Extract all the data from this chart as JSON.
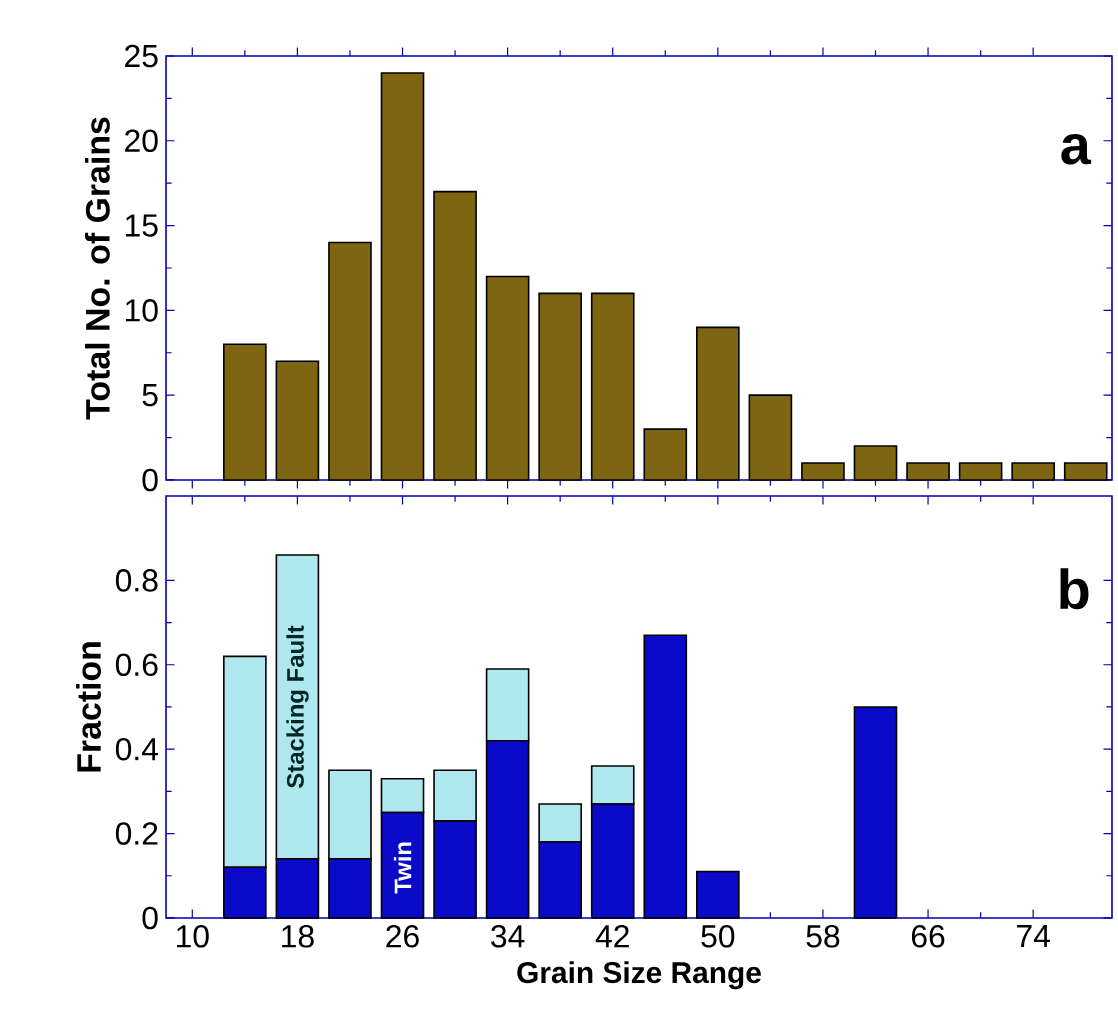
{
  "chart_data": [
    {
      "type": "bar",
      "title": "a",
      "ylabel": "Total No. of Grains",
      "x": [
        14,
        18,
        22,
        26,
        30,
        34,
        38,
        42,
        46,
        50,
        54,
        58,
        62,
        66,
        70,
        74,
        78
      ],
      "series": [
        {
          "color": "#7d6512",
          "values": [
            8,
            7,
            14,
            24,
            17,
            12,
            11,
            11,
            3,
            9,
            5,
            1,
            2,
            1,
            1,
            1,
            1
          ]
        }
      ],
      "xlim": [
        8,
        80
      ],
      "xticks": [
        {
          "value": 10,
          "label": null
        },
        {
          "value": 18,
          "label": null
        },
        {
          "value": 26,
          "label": null
        },
        {
          "value": 34,
          "label": null
        },
        {
          "value": 42,
          "label": null
        },
        {
          "value": 50,
          "label": null
        },
        {
          "value": 58,
          "label": null
        },
        {
          "value": 66,
          "label": null
        },
        {
          "value": 74,
          "label": null
        }
      ],
      "ylim": [
        0,
        25
      ],
      "yticks": [
        0,
        5,
        10,
        15,
        20,
        25
      ],
      "tick_labels": "y",
      "grid": false
    },
    {
      "type": "bar",
      "title": "b",
      "xlabel": "Grain Size Range",
      "ylabel": "Fraction",
      "x": [
        14,
        18,
        22,
        26,
        30,
        34,
        38,
        42,
        46,
        50,
        54,
        58,
        62
      ],
      "stacked": true,
      "series": [
        {
          "color": "#0a0ac8",
          "values": [
            0.12,
            0.14,
            0.14,
            0.25,
            0.23,
            0.42,
            0.18,
            0.27,
            0.67,
            0.11,
            null,
            null,
            0.5
          ]
        },
        {
          "color": "#aee8ee",
          "values": [
            0.5,
            0.72,
            0.21,
            0.08,
            0.12,
            0.17,
            0.09,
            0.09,
            0,
            0,
            null,
            null,
            0
          ]
        }
      ],
      "annotations": [
        "Stacking Fault",
        "Twin"
      ],
      "xlim": [
        8,
        80
      ],
      "xticks": [
        10,
        18,
        26,
        34,
        42,
        50,
        58,
        66,
        74
      ],
      "ylim": [
        0,
        1
      ],
      "yticks": [
        0,
        0.2,
        0.4,
        0.6,
        0.8
      ],
      "grid": false
    }
  ]
}
